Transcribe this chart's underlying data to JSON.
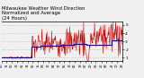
{
  "title": "Milwaukee Weather Wind Direction\nNormalized and Average\n(24 Hours)",
  "title_fontsize": 3.8,
  "bg_color": "#f0f0f0",
  "plot_bg_color": "#f0f0f0",
  "grid_color": "#b0b0b0",
  "red_line_color": "#cc0000",
  "blue_line_color": "#0000cc",
  "ylim": [
    0.6,
    5.4
  ],
  "yticks": [
    1,
    2,
    3,
    4,
    5
  ],
  "num_points": 288,
  "seed": 7
}
